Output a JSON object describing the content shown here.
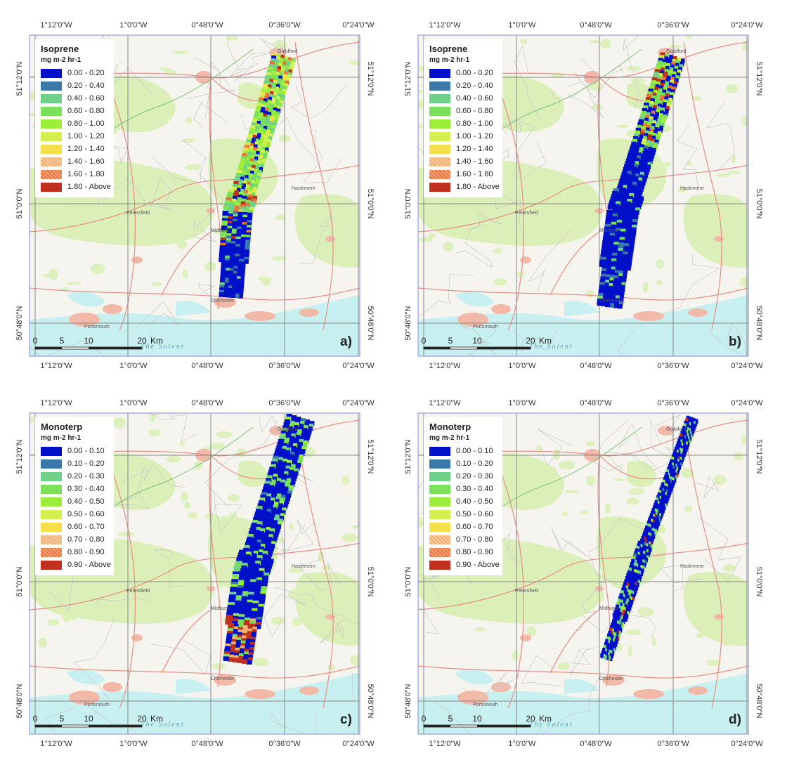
{
  "panels": [
    {
      "label": "a)",
      "legend_title": "Isoprene",
      "legend_unit": "mg m-2 hr-1",
      "classes": [
        "0.00 - 0.20",
        "0.20 - 0.40",
        "0.40 - 0.60",
        "0.60 - 0.80",
        "0.80 - 1.00",
        "1.00 - 1.20",
        "1.20 - 1.40",
        "1.40 - 1.60",
        "1.60 - 1.80",
        "1.80 - Above"
      ],
      "swath": {
        "p1": [
          0.77,
          0.07
        ],
        "p2": [
          0.63,
          0.55
        ],
        "p3": [
          0.61,
          0.81
        ],
        "width": 0.07
      },
      "dominant_classes": "mixed-green-blue-tail"
    },
    {
      "label": "b)",
      "legend_title": "Isoprene",
      "legend_unit": "mg m-2 hr-1",
      "classes": [
        "0.00 - 0.20",
        "0.20 - 0.40",
        "0.40 - 0.60",
        "0.60 - 0.80",
        "0.80 - 1.00",
        "1.00 - 1.20",
        "1.20 - 1.40",
        "1.40 - 1.60",
        "1.60 - 1.80",
        "1.80 - Above"
      ],
      "swath": {
        "p1": [
          0.77,
          0.07
        ],
        "p2": [
          0.62,
          0.55
        ],
        "p3": [
          0.58,
          0.84
        ],
        "width": 0.075
      },
      "dominant_classes": "blue-with-green-north"
    },
    {
      "label": "c)",
      "legend_title": "Monoterp",
      "legend_unit": "mg m-2 hr-1",
      "classes": [
        "0.00 - 0.10",
        "0.10 - 0.20",
        "0.20 - 0.30",
        "0.30 - 0.40",
        "0.40 - 0.50",
        "0.50 - 0.60",
        "0.60 - 0.70",
        "0.70 - 0.80",
        "0.80 - 0.90",
        "0.90 - Above"
      ],
      "swath": {
        "p1": [
          0.82,
          0.02
        ],
        "p2": [
          0.67,
          0.5
        ],
        "p3": [
          0.63,
          0.77
        ],
        "width": 0.085
      },
      "dominant_classes": "blue-dominant"
    },
    {
      "label": "d)",
      "legend_title": "Monoterp",
      "legend_unit": "mg m-2 hr-1",
      "classes": [
        "0.00 - 0.10",
        "0.10 - 0.20",
        "0.20 - 0.30",
        "0.30 - 0.40",
        "0.40 - 0.50",
        "0.50 - 0.60",
        "0.60 - 0.70",
        "0.70 - 0.80",
        "0.80 - 0.90",
        "0.90 - Above"
      ],
      "swath": {
        "p1": [
          0.83,
          0.02
        ],
        "p2": [
          0.67,
          0.46
        ],
        "p3": [
          0.57,
          0.76
        ],
        "width": 0.035
      },
      "dominant_classes": "blue-dominant-thin"
    }
  ],
  "class_colors": [
    "#0010c8",
    "#3a78a8",
    "#6fd08a",
    "#7be05a",
    "#9cee3a",
    "#d4f050",
    "#f4e04a",
    "#f0b070",
    "#e8743a",
    "#c0301e"
  ],
  "lon_ticks": [
    "1°12'0\"W",
    "1°0'0\"W",
    "0°48'0\"W",
    "0°36'0\"W",
    "0°24'0\"W"
  ],
  "lat_ticks": [
    "51°12'0\"N",
    "51°0'0\"N",
    "50°48'0\"N"
  ],
  "scale": {
    "numbers": [
      "0",
      "5",
      "10",
      "20"
    ],
    "unit": "Km"
  },
  "towns": {
    "guildford": "Guildford",
    "chichester": "Chichester",
    "portsmouth": "Portsmouth",
    "midhurst": "Midhurst",
    "petersfield": "Petersfield",
    "haslemere": "Haslemere"
  },
  "solent_label": "The Solent",
  "map_colors": {
    "land": "#f6f4ef",
    "green": "#dcefb8",
    "sea": "#c8f0f0",
    "urban": "#f2b9a8",
    "road": "#e58f86",
    "minor_road": "#c8c8c8",
    "grid": "#888888",
    "frame": "#9a9ed8"
  }
}
